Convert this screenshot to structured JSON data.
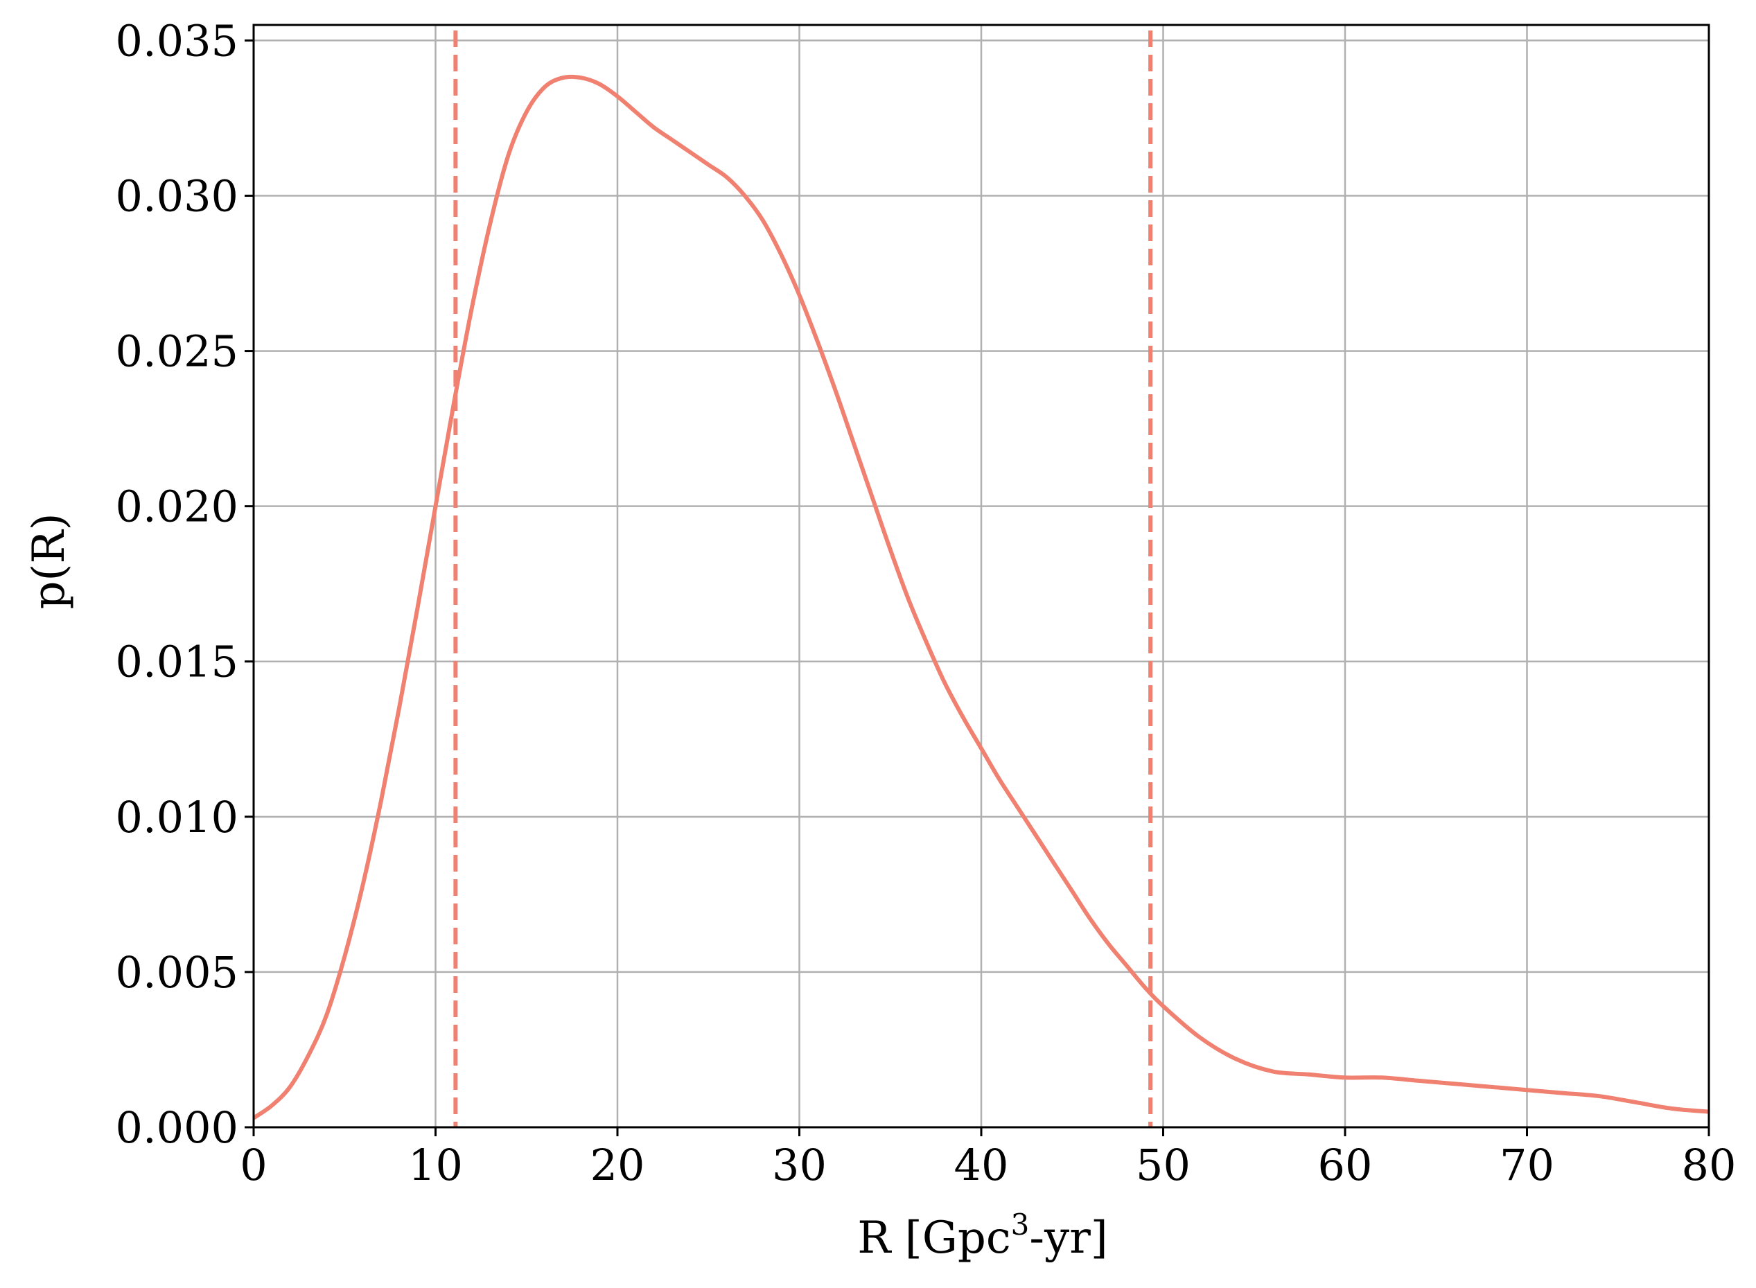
{
  "chart_data": {
    "type": "line",
    "title": "",
    "xlabel": "R [Gpc",
    "xlabel_sup": "3",
    "xlabel_tail": "-yr]",
    "ylabel": "p(R)",
    "xlim": [
      0,
      80
    ],
    "ylim": [
      0,
      0.0355
    ],
    "xticks": [
      0,
      10,
      20,
      30,
      40,
      50,
      60,
      70,
      80
    ],
    "xtick_labels": [
      "0",
      "10",
      "20",
      "30",
      "40",
      "50",
      "60",
      "70",
      "80"
    ],
    "yticks": [
      0,
      0.005,
      0.01,
      0.015,
      0.02,
      0.025,
      0.03,
      0.035
    ],
    "ytick_labels": [
      "0.000",
      "0.005",
      "0.010",
      "0.015",
      "0.020",
      "0.025",
      "0.030",
      "0.035"
    ],
    "grid": true,
    "color": "#f08070",
    "series": [
      {
        "x": [
          0,
          1,
          2,
          3,
          4,
          5,
          6,
          7,
          8,
          9,
          10,
          11,
          12,
          13,
          14,
          15,
          16,
          17,
          18,
          19,
          20,
          21,
          22,
          23,
          24,
          25,
          26,
          27,
          28,
          29,
          30,
          31,
          32,
          33,
          34,
          35,
          36,
          37,
          38,
          39,
          40,
          41,
          42,
          43,
          44,
          45,
          46,
          47,
          48,
          49,
          50,
          52,
          54,
          56,
          58,
          60,
          62,
          64,
          66,
          68,
          70,
          72,
          74,
          76,
          78,
          80
        ],
        "y": [
          0.0003,
          0.0007,
          0.0013,
          0.0023,
          0.0036,
          0.0055,
          0.0078,
          0.0105,
          0.0135,
          0.0167,
          0.02,
          0.0233,
          0.0264,
          0.0291,
          0.0313,
          0.0327,
          0.0335,
          0.0338,
          0.0338,
          0.0336,
          0.0332,
          0.0327,
          0.0322,
          0.0318,
          0.0314,
          0.031,
          0.0306,
          0.03,
          0.0292,
          0.0281,
          0.0268,
          0.0253,
          0.0237,
          0.022,
          0.0203,
          0.0186,
          0.017,
          0.0156,
          0.0143,
          0.0132,
          0.0122,
          0.0112,
          0.0103,
          0.0094,
          0.0085,
          0.0076,
          0.0067,
          0.0059,
          0.0052,
          0.0045,
          0.0039,
          0.0029,
          0.0022,
          0.0018,
          0.0017,
          0.0016,
          0.0016,
          0.0015,
          0.0014,
          0.0013,
          0.0012,
          0.0011,
          0.001,
          0.0008,
          0.0006,
          0.0005
        ]
      }
    ],
    "vlines": [
      11.1,
      49.3
    ]
  }
}
